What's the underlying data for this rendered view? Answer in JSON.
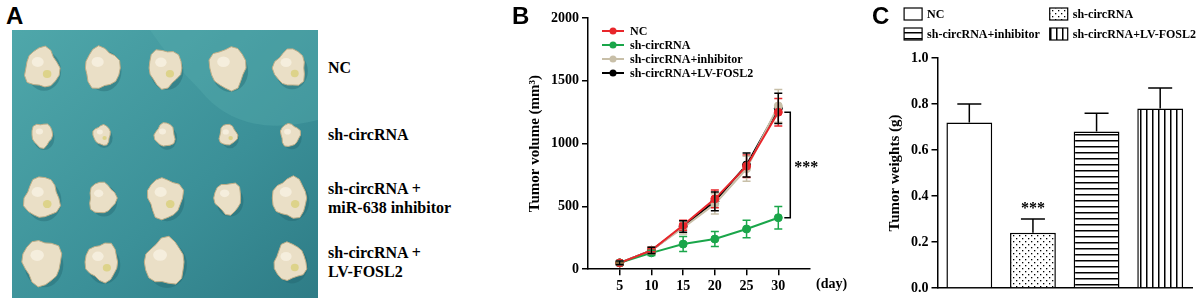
{
  "panel_labels": [
    "A",
    "B",
    "C"
  ],
  "photo": {
    "labels": [
      [
        "NC"
      ],
      [
        "sh-circRNA"
      ],
      [
        "sh-circRNA +",
        "miR-638 inhibitor"
      ],
      [
        "sh-circRNA +",
        "LV-FOSL2"
      ]
    ],
    "tumor_counts": [
      5,
      5,
      5,
      4
    ]
  },
  "chart_data": [
    {
      "type": "line",
      "ylabel": "Tumor volume (mm³)",
      "xlabel": "(day)",
      "x": [
        5,
        10,
        15,
        20,
        25,
        30
      ],
      "series": [
        {
          "name": "NC",
          "color": "#e8262b",
          "values": [
            50,
            150,
            350,
            560,
            820,
            1250
          ],
          "errors": [
            15,
            25,
            40,
            70,
            90,
            110
          ]
        },
        {
          "name": "sh-circRNA",
          "color": "#1aa64a",
          "values": [
            50,
            130,
            200,
            240,
            320,
            410
          ],
          "errors": [
            10,
            20,
            60,
            60,
            70,
            90
          ]
        },
        {
          "name": "sh-circRNA+inhibitor",
          "color": "#c8bfa8",
          "values": [
            50,
            150,
            330,
            520,
            800,
            1300
          ],
          "errors": [
            15,
            25,
            50,
            80,
            100,
            130
          ]
        },
        {
          "name": "sh-circRNA+LV-FOSL2",
          "color": "#000000",
          "values": [
            50,
            150,
            340,
            540,
            830,
            1280
          ],
          "errors": [
            15,
            25,
            45,
            75,
            95,
            120
          ]
        }
      ],
      "xlim": [
        0,
        35
      ],
      "xticks": [
        5,
        10,
        15,
        20,
        25,
        30
      ],
      "ylim": [
        0,
        2000
      ],
      "yticks": [
        0,
        500,
        1000,
        1500,
        2000
      ],
      "marker": "circle",
      "line_style": "solid",
      "legend": "upper left",
      "grid": false,
      "annotations": [
        {
          "text": "***",
          "x": 30,
          "series": [
            "NC",
            "sh-circRNA"
          ]
        }
      ]
    },
    {
      "type": "bar",
      "ylabel": "Tumor weights (g)",
      "categories": [
        "NC",
        "sh-circRNA",
        "sh-circRNA+inhibitor",
        "sh-circRNA+LV-FOSL2"
      ],
      "values": [
        0.72,
        0.24,
        0.68,
        0.78
      ],
      "errors": [
        0.08,
        0.06,
        0.08,
        0.09
      ],
      "colors": [
        "#ffffff",
        "#ffffff",
        "#ffffff",
        "#ffffff"
      ],
      "ylim": [
        0,
        1.0
      ],
      "yticks": [
        {
          "value": 0,
          "label": "0.0"
        },
        0.2,
        0.4,
        0.6,
        0.8,
        {
          "value": 1,
          "label": "1.0"
        }
      ],
      "legend": "top",
      "grid": false,
      "tick_labels": "y",
      "annotations": [
        {
          "text": "***",
          "category": "sh-circRNA"
        }
      ]
    }
  ]
}
